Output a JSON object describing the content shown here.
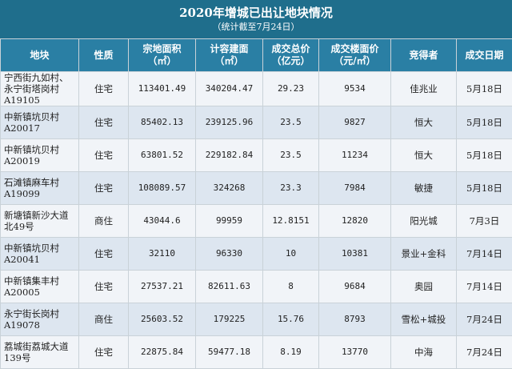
{
  "header": {
    "title": "2020年增城已出让地块情况",
    "subtitle": "（统计截至7月24日）"
  },
  "columns": [
    {
      "line1": "地块",
      "line2": ""
    },
    {
      "line1": "性质",
      "line2": ""
    },
    {
      "line1": "宗地面积",
      "line2": "（㎡）"
    },
    {
      "line1": "计容建面",
      "line2": "（㎡）"
    },
    {
      "line1": "成交总价",
      "line2": "（亿元）"
    },
    {
      "line1": "成交楼面价",
      "line2": "（元/㎡）"
    },
    {
      "line1": "竞得者",
      "line2": ""
    },
    {
      "line1": "成交日期",
      "line2": ""
    }
  ],
  "rows": [
    {
      "parcel": "宁西街九如村、永宁街塔岗村A19105",
      "use": "住宅",
      "site_area": "113401.49",
      "gfa": "340204.47",
      "total_price": "29.23",
      "floor_price": "9534",
      "winner": "佳兆业",
      "date": "5月18日"
    },
    {
      "parcel": "中新镇坑贝村A20017",
      "use": "住宅",
      "site_area": "85402.13",
      "gfa": "239125.96",
      "total_price": "23.5",
      "floor_price": "9827",
      "winner": "恒大",
      "date": "5月18日"
    },
    {
      "parcel": "中新镇坑贝村A20019",
      "use": "住宅",
      "site_area": "63801.52",
      "gfa": "229182.84",
      "total_price": "23.5",
      "floor_price": "11234",
      "winner": "恒大",
      "date": "5月18日"
    },
    {
      "parcel": "石滩镇麻车村A19099",
      "use": "住宅",
      "site_area": "108089.57",
      "gfa": "324268",
      "total_price": "23.3",
      "floor_price": "7984",
      "winner": "敏捷",
      "date": "5月18日"
    },
    {
      "parcel": "新塘镇新沙大道北49号",
      "use": "商住",
      "site_area": "43044.6",
      "gfa": "99959",
      "total_price": "12.8151",
      "floor_price": "12820",
      "winner": "阳光城",
      "date": "7月3日"
    },
    {
      "parcel": "中新镇坑贝村A20041",
      "use": "住宅",
      "site_area": "32110",
      "gfa": "96330",
      "total_price": "10",
      "floor_price": "10381",
      "winner": "景业+金科",
      "date": "7月14日"
    },
    {
      "parcel": "中新镇集丰村A20005",
      "use": "住宅",
      "site_area": "27537.21",
      "gfa": "82611.63",
      "total_price": "8",
      "floor_price": "9684",
      "winner": "奥园",
      "date": "7月14日"
    },
    {
      "parcel": "永宁街长岗村A19078",
      "use": "商住",
      "site_area": "25603.52",
      "gfa": "179225",
      "total_price": "15.76",
      "floor_price": "8793",
      "winner": "雪松+城投",
      "date": "7月24日"
    },
    {
      "parcel": "荔城街荔城大道139号",
      "use": "住宅",
      "site_area": "22875.84",
      "gfa": "59477.18",
      "total_price": "8.19",
      "floor_price": "13770",
      "winner": "中海",
      "date": "7月24日"
    }
  ]
}
